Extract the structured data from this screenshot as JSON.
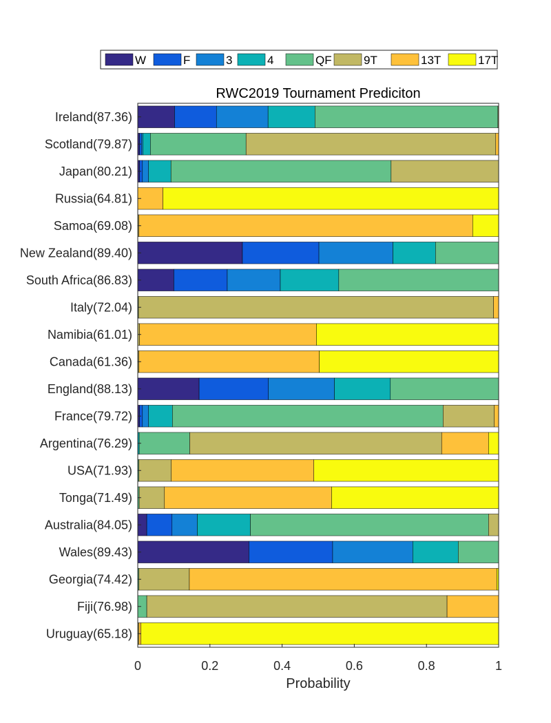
{
  "chart_data": {
    "type": "bar",
    "orientation": "horizontal",
    "stacked": true,
    "title": "RWC2019 Tournament Prediciton",
    "xlabel": "Probability",
    "ylabel": "",
    "xlim": [
      0,
      1
    ],
    "xticks": [
      "0",
      "0.2",
      "0.4",
      "0.6",
      "0.8",
      "1"
    ],
    "xtick_values": [
      0,
      0.2,
      0.4,
      0.6,
      0.8,
      1
    ],
    "grid": false,
    "legend_position": "top (outside)",
    "categories": [
      "Ireland(87.36)",
      "Scotland(79.87)",
      "Japan(80.21)",
      "Russia(64.81)",
      "Samoa(69.08)",
      "New Zealand(89.40)",
      "South Africa(86.83)",
      "Italy(72.04)",
      "Namibia(61.01)",
      "Canada(61.36)",
      "England(88.13)",
      "France(79.72)",
      "Argentina(76.29)",
      "USA(71.93)",
      "Tonga(71.49)",
      "Australia(84.05)",
      "Wales(89.43)",
      "Georgia(74.42)",
      "Fiji(76.98)",
      "Uruguay(65.18)"
    ],
    "series": [
      {
        "name": "W",
        "color": "#352a87",
        "values": [
          0.102,
          0.005,
          0.005,
          0,
          0,
          0.29,
          0.1,
          0,
          0,
          0,
          0.17,
          0.005,
          0,
          0,
          0,
          0.025,
          0.308,
          0,
          0,
          0
        ]
      },
      {
        "name": "F",
        "color": "#0f5cdd",
        "values": [
          0.116,
          0.005,
          0.008,
          0,
          0,
          0.212,
          0.148,
          0,
          0,
          0,
          0.192,
          0.008,
          0,
          0,
          0,
          0.07,
          0.232,
          0,
          0,
          0
        ]
      },
      {
        "name": "3",
        "color": "#1481d6",
        "values": [
          0.143,
          0.004,
          0.017,
          0,
          0,
          0.205,
          0.147,
          0,
          0,
          0,
          0.183,
          0.017,
          0,
          0,
          0,
          0.07,
          0.222,
          0,
          0,
          0
        ]
      },
      {
        "name": "4",
        "color": "#0cb1b5",
        "values": [
          0.13,
          0.021,
          0.062,
          0,
          0,
          0.118,
          0.162,
          0,
          0,
          0,
          0.155,
          0.066,
          0.004,
          0,
          0,
          0.147,
          0.126,
          0,
          0,
          0
        ]
      },
      {
        "name": "QF",
        "color": "#64c18a",
        "values": [
          0.507,
          0.265,
          0.61,
          0,
          0,
          0.175,
          0.443,
          0.002,
          0,
          0,
          0.3,
          0.75,
          0.14,
          0.003,
          0.004,
          0.66,
          0.112,
          0.003,
          0.025,
          0
        ]
      },
      {
        "name": "9T",
        "color": "#c1b864",
        "values": [
          0.002,
          0.692,
          0.298,
          0,
          0.003,
          0,
          0,
          0.984,
          0.005,
          0.003,
          0,
          0.142,
          0.698,
          0.09,
          0.07,
          0.028,
          0,
          0.14,
          0.832,
          0.003
        ]
      },
      {
        "name": "13T",
        "color": "#fec13a",
        "values": [
          0,
          0.008,
          0,
          0.07,
          0.925,
          0,
          0,
          0.014,
          0.49,
          0.5,
          0,
          0.012,
          0.13,
          0.395,
          0.463,
          0,
          0,
          0.852,
          0.143,
          0.006
        ]
      },
      {
        "name": "17T",
        "color": "#f9fb0e",
        "values": [
          0,
          0,
          0,
          0.93,
          0.072,
          0,
          0,
          0,
          0.505,
          0.497,
          0,
          0,
          0.028,
          0.512,
          0.463,
          0,
          0,
          0.005,
          0,
          0.991
        ]
      }
    ]
  }
}
